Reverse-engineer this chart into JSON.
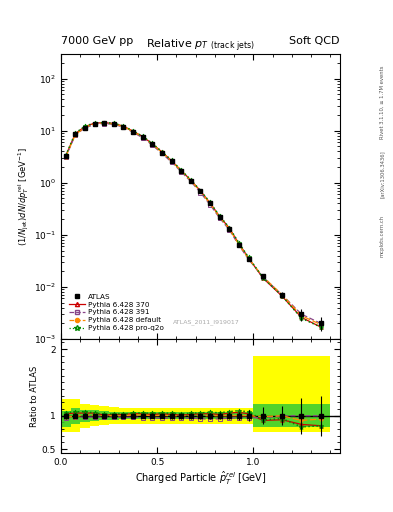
{
  "title": "Relative p_T (track jets)",
  "header_left": "7000 GeV pp",
  "header_right": "Soft QCD",
  "right_label": "Rivet 3.1.10, ≥ 1.7M events",
  "arxiv_label": "[arXiv:1306.3436]",
  "mcplots_label": "mcplots.cern.ch",
  "watermark": "ATLAS_2011_I919017",
  "xlabel": "Charged Particle $\\hat{p}_T^{rel}$ [GeV]",
  "ylabel": "(1/N_jet)dN/dp_T^rel [GeV^-1]",
  "ratio_ylabel": "Ratio to ATLAS",
  "xlim": [
    0.0,
    1.45
  ],
  "ylim_log": [
    0.001,
    300
  ],
  "ylim_ratio": [
    0.44,
    2.15
  ],
  "x_data": [
    0.025,
    0.075,
    0.125,
    0.175,
    0.225,
    0.275,
    0.325,
    0.375,
    0.425,
    0.475,
    0.525,
    0.575,
    0.625,
    0.675,
    0.725,
    0.775,
    0.825,
    0.875,
    0.925,
    0.975,
    1.05,
    1.15,
    1.25,
    1.35
  ],
  "atlas_y": [
    3.2,
    8.5,
    11.5,
    13.5,
    14.0,
    13.5,
    12.0,
    9.5,
    7.5,
    5.5,
    3.8,
    2.6,
    1.7,
    1.1,
    0.68,
    0.4,
    0.22,
    0.13,
    0.065,
    0.035,
    0.016,
    0.007,
    0.003,
    0.002
  ],
  "atlas_yerr": [
    0.15,
    0.3,
    0.4,
    0.45,
    0.45,
    0.45,
    0.4,
    0.35,
    0.28,
    0.22,
    0.15,
    0.11,
    0.07,
    0.05,
    0.03,
    0.018,
    0.011,
    0.007,
    0.004,
    0.003,
    0.002,
    0.001,
    0.0008,
    0.0006
  ],
  "py370_y": [
    3.3,
    8.8,
    12.0,
    14.0,
    14.2,
    13.8,
    12.2,
    9.8,
    7.7,
    5.6,
    3.9,
    2.65,
    1.72,
    1.12,
    0.7,
    0.41,
    0.225,
    0.135,
    0.068,
    0.036,
    0.0148,
    0.0066,
    0.0026,
    0.0017
  ],
  "py391_y": [
    3.1,
    8.3,
    11.3,
    13.2,
    13.7,
    13.2,
    11.7,
    9.3,
    7.3,
    5.3,
    3.65,
    2.5,
    1.63,
    1.06,
    0.65,
    0.38,
    0.21,
    0.125,
    0.063,
    0.034,
    0.0155,
    0.007,
    0.003,
    0.002
  ],
  "pydef_y": [
    3.15,
    8.4,
    11.6,
    13.6,
    14.0,
    13.5,
    12.0,
    9.6,
    7.6,
    5.5,
    3.82,
    2.6,
    1.7,
    1.1,
    0.68,
    0.4,
    0.22,
    0.13,
    0.065,
    0.035,
    0.0158,
    0.007,
    0.0028,
    0.0019
  ],
  "pyproq2o_y": [
    3.35,
    9.0,
    12.2,
    14.1,
    14.3,
    13.9,
    12.3,
    9.9,
    7.8,
    5.7,
    3.95,
    2.7,
    1.75,
    1.14,
    0.71,
    0.42,
    0.23,
    0.138,
    0.07,
    0.037,
    0.015,
    0.0067,
    0.0025,
    0.0017
  ],
  "ratio_py370": [
    1.03,
    1.04,
    1.04,
    1.04,
    1.01,
    1.02,
    1.02,
    1.03,
    1.03,
    1.02,
    1.03,
    1.02,
    1.01,
    1.02,
    1.03,
    1.03,
    1.02,
    1.04,
    1.05,
    1.03,
    0.93,
    0.94,
    0.87,
    0.85
  ],
  "ratio_py391": [
    0.97,
    0.98,
    0.98,
    0.98,
    0.98,
    0.98,
    0.975,
    0.979,
    0.973,
    0.964,
    0.961,
    0.962,
    0.959,
    0.964,
    0.956,
    0.95,
    0.955,
    0.962,
    0.969,
    0.971,
    0.969,
    1.0,
    1.0,
    1.0
  ],
  "ratio_pydef": [
    0.984,
    0.988,
    1.009,
    1.007,
    1.0,
    1.0,
    1.0,
    1.011,
    1.013,
    1.0,
    1.005,
    1.0,
    1.0,
    1.0,
    1.0,
    1.0,
    1.0,
    1.0,
    1.0,
    1.0,
    0.988,
    1.0,
    0.93,
    0.95
  ],
  "ratio_pyproq2o": [
    1.047,
    1.059,
    1.061,
    1.044,
    1.021,
    1.03,
    1.025,
    1.042,
    1.04,
    1.036,
    1.039,
    1.038,
    1.029,
    1.036,
    1.044,
    1.05,
    1.045,
    1.062,
    1.077,
    1.057,
    0.938,
    0.957,
    0.833,
    0.85
  ],
  "band_x_edges": [
    0.0,
    0.05,
    0.1,
    0.15,
    0.2,
    0.25,
    0.3,
    0.35,
    0.4,
    0.45,
    0.5,
    0.55,
    0.6,
    0.65,
    0.7,
    0.75,
    0.8,
    0.85,
    0.9,
    0.95,
    1.0,
    1.1,
    1.2,
    1.3,
    1.4
  ],
  "band_yellow_lo": [
    0.75,
    0.75,
    0.82,
    0.84,
    0.86,
    0.87,
    0.88,
    0.88,
    0.88,
    0.88,
    0.88,
    0.88,
    0.88,
    0.88,
    0.88,
    0.88,
    0.88,
    0.88,
    0.88,
    0.88,
    0.75,
    0.75,
    0.75,
    0.75
  ],
  "band_yellow_hi": [
    1.25,
    1.25,
    1.18,
    1.16,
    1.14,
    1.13,
    1.12,
    1.12,
    1.12,
    1.12,
    1.12,
    1.12,
    1.12,
    1.12,
    1.12,
    1.12,
    1.12,
    1.12,
    1.12,
    1.12,
    1.9,
    1.9,
    1.9,
    1.9
  ],
  "band_green_lo": [
    0.83,
    0.88,
    0.91,
    0.92,
    0.93,
    0.94,
    0.95,
    0.95,
    0.95,
    0.95,
    0.95,
    0.95,
    0.95,
    0.95,
    0.95,
    0.95,
    0.95,
    0.95,
    0.95,
    0.95,
    0.83,
    0.83,
    0.83,
    0.83
  ],
  "band_green_hi": [
    1.07,
    1.12,
    1.09,
    1.08,
    1.07,
    1.06,
    1.05,
    1.05,
    1.05,
    1.05,
    1.05,
    1.05,
    1.05,
    1.05,
    1.05,
    1.05,
    1.05,
    1.05,
    1.05,
    1.05,
    1.17,
    1.17,
    1.17,
    1.17
  ],
  "color_atlas": "#000000",
  "color_py370": "#cc0000",
  "color_py391": "#884488",
  "color_pydef": "#ff8800",
  "color_pyproq2o": "#008800",
  "color_yellow": "#ffff00",
  "color_green": "#33cc33",
  "bg_color": "#ffffff"
}
